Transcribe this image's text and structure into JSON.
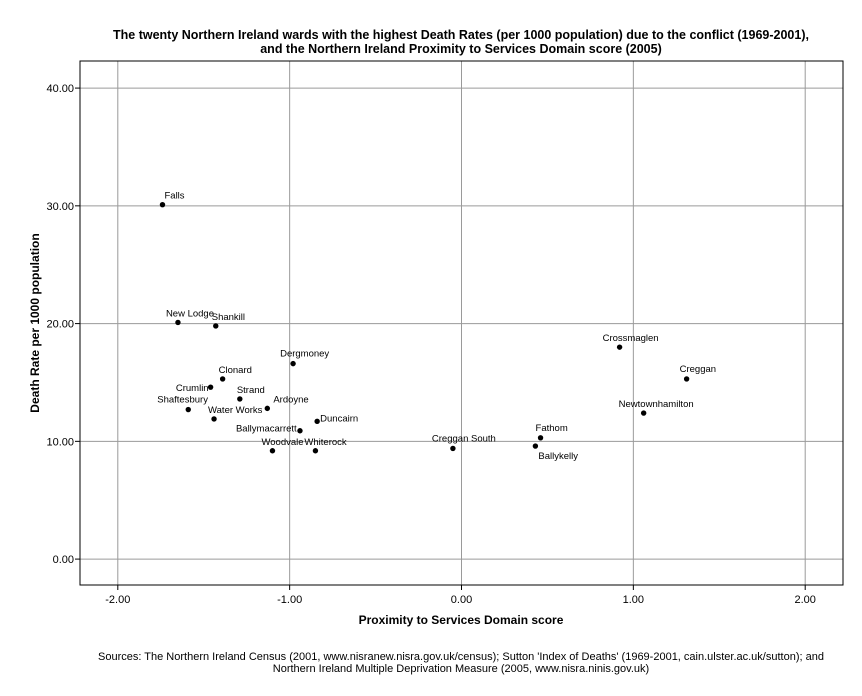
{
  "chart_data": {
    "type": "scatter",
    "title_lines": [
      "The twenty Northern Ireland wards with the highest Death Rates (per 1000 population) due to the conflict (1969-2001),",
      "and the Northern Ireland Proximity to Services Domain score (2005)"
    ],
    "xlabel": "Proximity to Services Domain score",
    "ylabel": "Death Rate per 1000 population",
    "xlim": [
      -2.22,
      2.22
    ],
    "ylim": [
      -2.2,
      42.3
    ],
    "x_ticks": [
      -2.0,
      -1.0,
      0.0,
      1.0,
      2.0
    ],
    "x_tick_labels": [
      "-2.00",
      "-1.00",
      "0.00",
      "1.00",
      "2.00"
    ],
    "y_ticks": [
      0,
      10,
      20,
      30,
      40
    ],
    "y_tick_labels": [
      "0.00",
      "10.00",
      "20.00",
      "30.00",
      "40.00"
    ],
    "grid": true,
    "points": [
      {
        "label": "Falls",
        "x": -1.74,
        "y": 30.1
      },
      {
        "label": "New Lodge",
        "x": -1.65,
        "y": 20.1
      },
      {
        "label": "Shankill",
        "x": -1.43,
        "y": 19.8
      },
      {
        "label": "Dergmoney",
        "x": -0.98,
        "y": 16.6
      },
      {
        "label": "Clonard",
        "x": -1.39,
        "y": 15.3
      },
      {
        "label": "Crumlin",
        "x": -1.46,
        "y": 14.6
      },
      {
        "label": "Strand",
        "x": -1.29,
        "y": 13.6
      },
      {
        "label": "Ardoyne",
        "x": -1.13,
        "y": 12.8
      },
      {
        "label": "Shaftesbury",
        "x": -1.59,
        "y": 12.7
      },
      {
        "label": "Water Works",
        "x": -1.44,
        "y": 11.9
      },
      {
        "label": "Duncairn",
        "x": -0.84,
        "y": 11.7
      },
      {
        "label": "Ballymacarrett",
        "x": -0.94,
        "y": 10.9
      },
      {
        "label": "Woodvale",
        "x": -1.1,
        "y": 9.2
      },
      {
        "label": "Whiterock",
        "x": -0.85,
        "y": 9.2
      },
      {
        "label": "Creggan South",
        "x": -0.05,
        "y": 9.4
      },
      {
        "label": "Fathom",
        "x": 0.46,
        "y": 10.3
      },
      {
        "label": "Ballykelly",
        "x": 0.43,
        "y": 9.6
      },
      {
        "label": "Crossmaglen",
        "x": 0.92,
        "y": 18.0
      },
      {
        "label": "Creggan",
        "x": 1.31,
        "y": 15.3
      },
      {
        "label": "Newtownhamilton",
        "x": 1.06,
        "y": 12.4
      }
    ]
  },
  "sources": [
    "Sources: The Northern Ireland Census (2001, www.nisranew.nisra.gov.uk/census); Sutton 'Index of Deaths' (1969-2001, cain.ulster.ac.uk/sutton); and",
    "Northern Ireland Multiple Deprivation Measure (2005, www.nisra.ninis.gov.uk)"
  ]
}
